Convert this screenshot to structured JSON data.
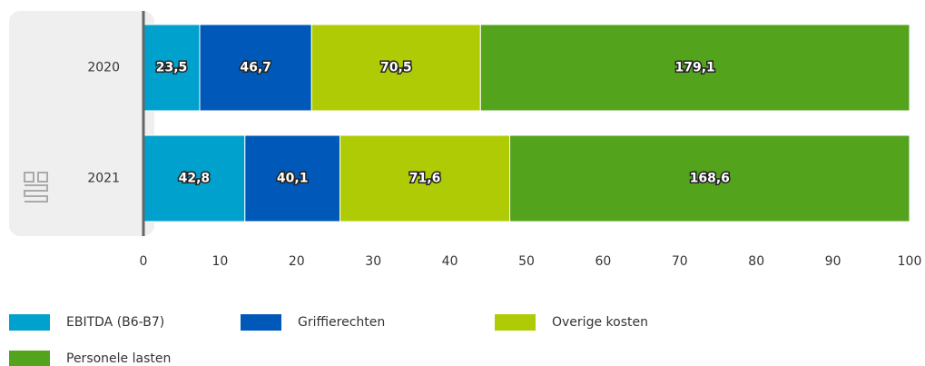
{
  "chart_data": {
    "type": "bar",
    "orientation": "horizontal",
    "stacked": "percent",
    "categories": [
      "2020",
      "2021"
    ],
    "series": [
      {
        "name": "EBITDA (B6-B7)",
        "color": "#00a1cd",
        "values": [
          23.5,
          42.8
        ],
        "value_labels": [
          "23,5",
          "42,8"
        ]
      },
      {
        "name": "Griffierechten",
        "color": "#0058b8",
        "values": [
          46.7,
          40.1
        ],
        "value_labels": [
          "46,7",
          "40,1"
        ]
      },
      {
        "name": "Overige kosten",
        "color": "#afcb05",
        "values": [
          70.5,
          71.6
        ],
        "value_labels": [
          "70,5",
          "71,6"
        ]
      },
      {
        "name": "Personele lasten",
        "color": "#53a31d",
        "values": [
          179.1,
          168.6
        ],
        "value_labels": [
          "179,1",
          "168,6"
        ]
      }
    ],
    "xlim": [
      0,
      100
    ],
    "xticks": [
      0,
      10,
      20,
      30,
      40,
      50,
      60,
      70,
      80,
      90,
      100
    ],
    "grid": false
  }
}
